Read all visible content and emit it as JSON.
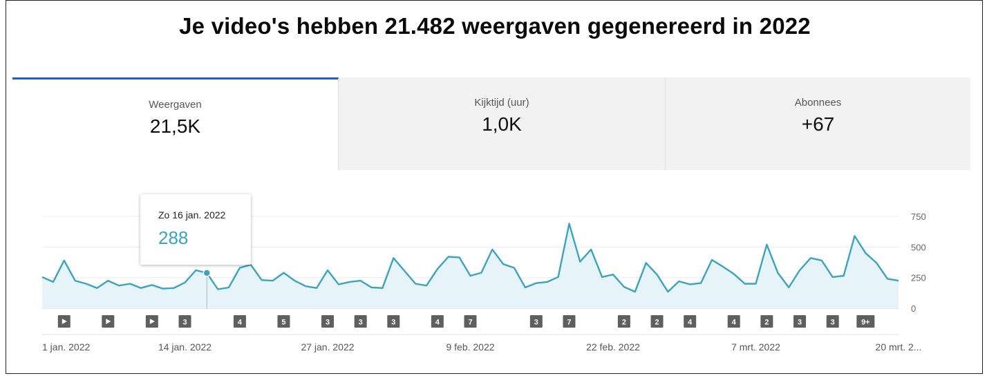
{
  "headline": "Je video's hebben 21.482 weergaven gegenereerd in 2022",
  "tabs": [
    {
      "label": "Weergaven",
      "value": "21,5K",
      "active": true
    },
    {
      "label": "Kijktijd (uur)",
      "value": "1,0K",
      "active": false
    },
    {
      "label": "Abonnees",
      "value": "+67",
      "active": false
    }
  ],
  "tooltip": {
    "date": "Zo 16 jan. 2022",
    "value": "288"
  },
  "colors": {
    "line": "#3aa3c0",
    "fill": "#e6f3f8",
    "accent": "#1a61c6",
    "marker": "#5f5f5f"
  },
  "chart_data": {
    "type": "area",
    "ylim": [
      0,
      750
    ],
    "yticks": [
      0,
      250,
      500,
      750
    ],
    "ytick_labels": [
      "0",
      "250",
      "500",
      "750"
    ],
    "xticks": [
      {
        "day": 1,
        "label": "1 jan. 2022"
      },
      {
        "day": 14,
        "label": "14 jan. 2022"
      },
      {
        "day": 27,
        "label": "27 jan. 2022"
      },
      {
        "day": 40,
        "label": "9 feb. 2022"
      },
      {
        "day": 53,
        "label": "22 feb. 2022"
      },
      {
        "day": 66,
        "label": "7 mrt. 2022"
      },
      {
        "day": 79,
        "label": "20 mrt. 2..."
      }
    ],
    "x_start_day": 1,
    "x_end_day": 82,
    "values": [
      255,
      215,
      390,
      225,
      200,
      165,
      225,
      185,
      200,
      165,
      190,
      160,
      165,
      210,
      310,
      288,
      155,
      170,
      330,
      355,
      230,
      225,
      290,
      225,
      180,
      165,
      310,
      195,
      215,
      225,
      170,
      165,
      410,
      305,
      200,
      185,
      320,
      420,
      415,
      265,
      290,
      480,
      360,
      330,
      170,
      205,
      215,
      255,
      690,
      380,
      480,
      255,
      275,
      175,
      135,
      370,
      275,
      135,
      220,
      195,
      205,
      395,
      340,
      280,
      200,
      200,
      520,
      290,
      170,
      310,
      410,
      390,
      255,
      265,
      590,
      450,
      370,
      240,
      225
    ],
    "highlight": {
      "day": 16,
      "value": 288
    },
    "markers": [
      {
        "day": 3,
        "type": "play",
        "label": ""
      },
      {
        "day": 7,
        "type": "play",
        "label": ""
      },
      {
        "day": 11,
        "type": "play",
        "label": ""
      },
      {
        "day": 14,
        "type": "count",
        "label": "3"
      },
      {
        "day": 19,
        "type": "count",
        "label": "4"
      },
      {
        "day": 23,
        "type": "count",
        "label": "5"
      },
      {
        "day": 27,
        "type": "count",
        "label": "3"
      },
      {
        "day": 30,
        "type": "count",
        "label": "3"
      },
      {
        "day": 33,
        "type": "count",
        "label": "3"
      },
      {
        "day": 37,
        "type": "count",
        "label": "4"
      },
      {
        "day": 40,
        "type": "count",
        "label": "7"
      },
      {
        "day": 46,
        "type": "count",
        "label": "3"
      },
      {
        "day": 49,
        "type": "count",
        "label": "7"
      },
      {
        "day": 54,
        "type": "count",
        "label": "2"
      },
      {
        "day": 57,
        "type": "count",
        "label": "2"
      },
      {
        "day": 60,
        "type": "count",
        "label": "4"
      },
      {
        "day": 64,
        "type": "count",
        "label": "4"
      },
      {
        "day": 67,
        "type": "count",
        "label": "2"
      },
      {
        "day": 70,
        "type": "count",
        "label": "3"
      },
      {
        "day": 73,
        "type": "count",
        "label": "3"
      },
      {
        "day": 76,
        "type": "count",
        "label": "9+"
      }
    ]
  }
}
